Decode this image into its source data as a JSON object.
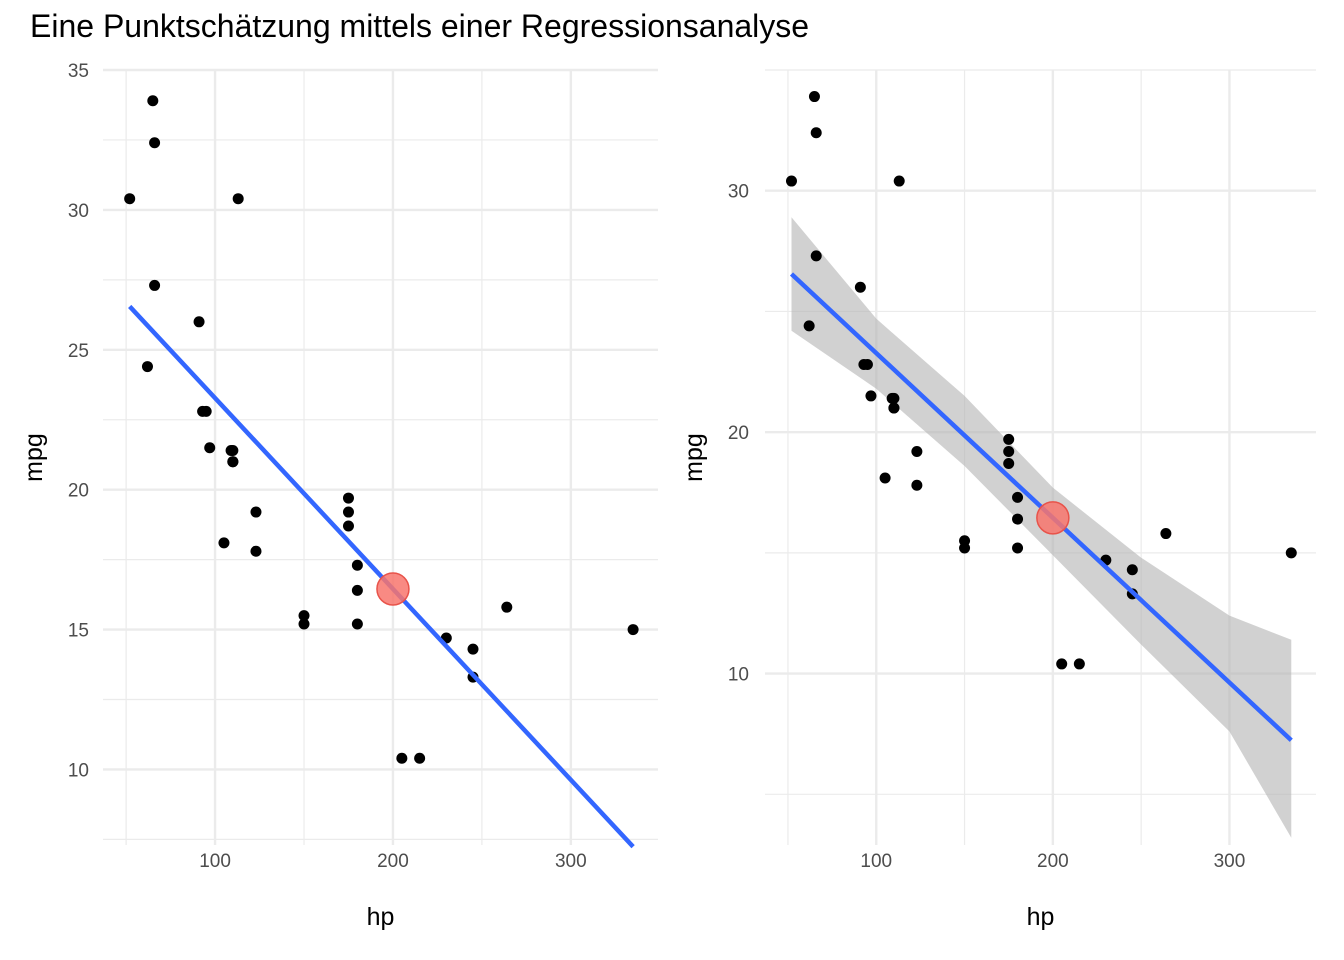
{
  "title": "Eine Punktschätzung mittels einer Regressionsanalyse",
  "colors": {
    "points": "#000000",
    "line": "#3366FF",
    "ribbon": "#b3b3b3",
    "highlight": "#f8766d",
    "grid": "#ebebeb"
  },
  "chart_data": [
    {
      "type": "scatter",
      "xlabel": "hp",
      "ylabel": "mpg",
      "xlim": [
        37,
        349
      ],
      "ylim": [
        7.3,
        35.0
      ],
      "x_ticks": [
        100,
        200,
        300
      ],
      "y_ticks": [
        10,
        15,
        20,
        25,
        30,
        35
      ],
      "points": [
        [
          110,
          21.0
        ],
        [
          110,
          21.0
        ],
        [
          93,
          22.8
        ],
        [
          110,
          21.4
        ],
        [
          175,
          18.7
        ],
        [
          105,
          18.1
        ],
        [
          245,
          14.3
        ],
        [
          62,
          24.4
        ],
        [
          95,
          22.8
        ],
        [
          123,
          19.2
        ],
        [
          123,
          17.8
        ],
        [
          180,
          16.4
        ],
        [
          180,
          17.3
        ],
        [
          180,
          15.2
        ],
        [
          205,
          10.4
        ],
        [
          215,
          10.4
        ],
        [
          230,
          14.7
        ],
        [
          66,
          32.4
        ],
        [
          52,
          30.4
        ],
        [
          65,
          33.9
        ],
        [
          97,
          21.5
        ],
        [
          150,
          15.5
        ],
        [
          150,
          15.2
        ],
        [
          245,
          13.3
        ],
        [
          175,
          19.2
        ],
        [
          66,
          27.3
        ],
        [
          91,
          26.0
        ],
        [
          113,
          30.4
        ],
        [
          264,
          15.8
        ],
        [
          175,
          19.7
        ],
        [
          335,
          15.0
        ],
        [
          109,
          21.4
        ]
      ],
      "fit_line": {
        "x": [
          52,
          335
        ],
        "y": [
          26.55,
          7.24
        ]
      },
      "highlight_point": {
        "x": 200,
        "y": 16.45
      }
    },
    {
      "type": "scatter",
      "xlabel": "hp",
      "ylabel": "mpg",
      "xlim": [
        37,
        349
      ],
      "ylim": [
        2.9,
        35.0
      ],
      "x_ticks": [
        100,
        200,
        300
      ],
      "y_ticks": [
        10,
        20,
        30
      ],
      "points": [
        [
          110,
          21.0
        ],
        [
          110,
          21.0
        ],
        [
          93,
          22.8
        ],
        [
          110,
          21.4
        ],
        [
          175,
          18.7
        ],
        [
          105,
          18.1
        ],
        [
          245,
          14.3
        ],
        [
          62,
          24.4
        ],
        [
          95,
          22.8
        ],
        [
          123,
          19.2
        ],
        [
          123,
          17.8
        ],
        [
          180,
          16.4
        ],
        [
          180,
          17.3
        ],
        [
          180,
          15.2
        ],
        [
          205,
          10.4
        ],
        [
          215,
          10.4
        ],
        [
          230,
          14.7
        ],
        [
          66,
          32.4
        ],
        [
          52,
          30.4
        ],
        [
          65,
          33.9
        ],
        [
          97,
          21.5
        ],
        [
          150,
          15.5
        ],
        [
          150,
          15.2
        ],
        [
          245,
          13.3
        ],
        [
          175,
          19.2
        ],
        [
          66,
          27.3
        ],
        [
          91,
          26.0
        ],
        [
          113,
          30.4
        ],
        [
          264,
          15.8
        ],
        [
          175,
          19.7
        ],
        [
          335,
          15.0
        ],
        [
          109,
          21.4
        ]
      ],
      "fit_line": {
        "x": [
          52,
          335
        ],
        "y": [
          26.55,
          7.24
        ]
      },
      "confidence_band": {
        "x": [
          52,
          100,
          150,
          200,
          250,
          300,
          335
        ],
        "lower": [
          24.2,
          21.8,
          18.6,
          14.9,
          11.2,
          7.6,
          3.2
        ],
        "upper": [
          28.9,
          24.7,
          21.5,
          17.7,
          14.8,
          12.4,
          11.4
        ]
      },
      "highlight_point": {
        "x": 200,
        "y": 16.45
      }
    }
  ]
}
